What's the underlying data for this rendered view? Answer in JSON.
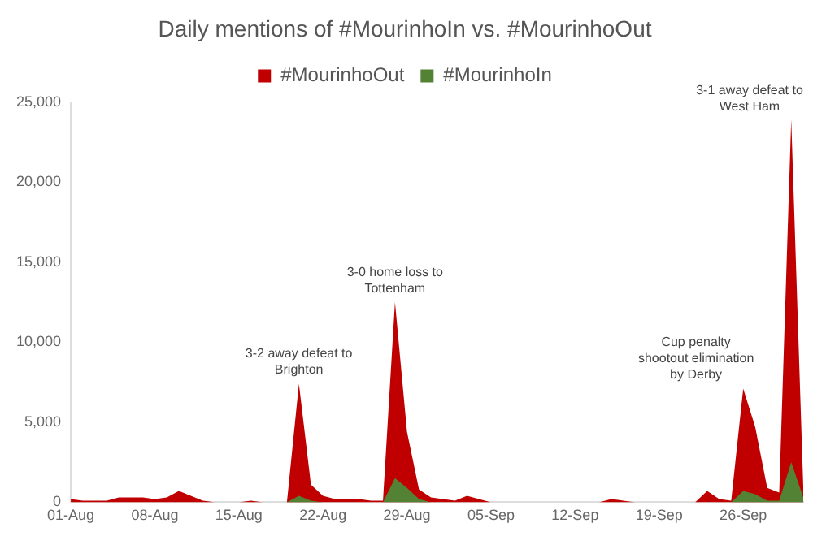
{
  "chart_data": {
    "type": "area",
    "title": "Daily mentions of #MourinhoIn vs. #MourinhoOut",
    "x": [
      "--08-01",
      "--08-02",
      "--08-03",
      "--08-04",
      "--08-05",
      "--08-06",
      "--08-07",
      "--08-08",
      "--08-09",
      "--08-10",
      "--08-11",
      "--08-12",
      "--08-13",
      "--08-14",
      "--08-15",
      "--08-16",
      "--08-17",
      "--08-18",
      "--08-19",
      "--08-20",
      "--08-21",
      "--08-22",
      "--08-23",
      "--08-24",
      "--08-25",
      "--08-26",
      "--08-27",
      "--08-28",
      "--08-29",
      "--08-30",
      "--08-31",
      "--09-01",
      "--09-02",
      "--09-03",
      "--09-04",
      "--09-05",
      "--09-06",
      "--09-07",
      "--09-08",
      "--09-09",
      "--09-10",
      "--09-11",
      "--09-12",
      "--09-13",
      "--09-14",
      "--09-15",
      "--09-16",
      "--09-17",
      "--09-18",
      "--09-19",
      "--09-20",
      "--09-21",
      "--09-22",
      "--09-23",
      "--09-24",
      "--09-25",
      "--09-26",
      "--09-27",
      "--09-28",
      "--09-29",
      "--09-30",
      "--10-01"
    ],
    "series": [
      {
        "name": "#MourinhoOut",
        "color": "#c00000",
        "values": [
          200,
          100,
          100,
          100,
          300,
          300,
          300,
          200,
          300,
          700,
          400,
          100,
          0,
          0,
          0,
          100,
          0,
          0,
          0,
          7400,
          1100,
          400,
          200,
          200,
          200,
          100,
          100,
          12500,
          4400,
          800,
          300,
          200,
          100,
          400,
          200,
          0,
          0,
          0,
          0,
          0,
          0,
          0,
          0,
          0,
          0,
          200,
          100,
          0,
          0,
          0,
          0,
          0,
          0,
          700,
          200,
          100,
          7100,
          4700,
          900,
          600,
          23900,
          1000
        ]
      },
      {
        "name": "#MourinhoIn",
        "color": "#548235",
        "values": [
          0,
          0,
          0,
          0,
          0,
          0,
          0,
          0,
          0,
          0,
          0,
          0,
          0,
          0,
          0,
          0,
          0,
          0,
          0,
          400,
          100,
          0,
          0,
          0,
          0,
          0,
          0,
          1500,
          900,
          200,
          0,
          0,
          0,
          0,
          0,
          0,
          0,
          0,
          0,
          0,
          0,
          0,
          0,
          0,
          0,
          0,
          0,
          0,
          0,
          0,
          0,
          0,
          0,
          0,
          0,
          0,
          700,
          500,
          100,
          100,
          2500,
          300
        ]
      }
    ],
    "xlim": [
      "--08-01",
      "--10-01"
    ],
    "xticks": [
      {
        "value": "--08-01",
        "label": "01-Aug"
      },
      {
        "value": "--08-08",
        "label": "08-Aug"
      },
      {
        "value": "--08-15",
        "label": "15-Aug"
      },
      {
        "value": "--08-22",
        "label": "22-Aug"
      },
      {
        "value": "--08-29",
        "label": "29-Aug"
      },
      {
        "value": "--09-05",
        "label": "05-Sep"
      },
      {
        "value": "--09-12",
        "label": "12-Sep"
      },
      {
        "value": "--09-19",
        "label": "19-Sep"
      },
      {
        "value": "--09-26",
        "label": "26-Sep"
      }
    ],
    "ylim": [
      0,
      25000
    ],
    "yticks": [
      {
        "value": 0,
        "label": "0"
      },
      {
        "value": 5000,
        "label": "5,000"
      },
      {
        "value": 10000,
        "label": "10,000"
      },
      {
        "value": 15000,
        "label": "15,000"
      },
      {
        "value": 20000,
        "label": "20,000"
      },
      {
        "value": 25000,
        "label": "25,000"
      }
    ],
    "annotations": [
      {
        "text": "3-2 away defeat to Brighton",
        "x": "--08-20",
        "y": 7400
      },
      {
        "text": "3-0 home loss to Tottenham",
        "x": "--08-28",
        "y": 12500
      },
      {
        "text": "Cup penalty shootout elimination by Derby",
        "x": "--09-26",
        "y": 7100
      },
      {
        "text": "3-1 away defeat to West Ham",
        "x": "--09-30",
        "y": 23900
      }
    ],
    "grid": false,
    "legend": "top"
  }
}
